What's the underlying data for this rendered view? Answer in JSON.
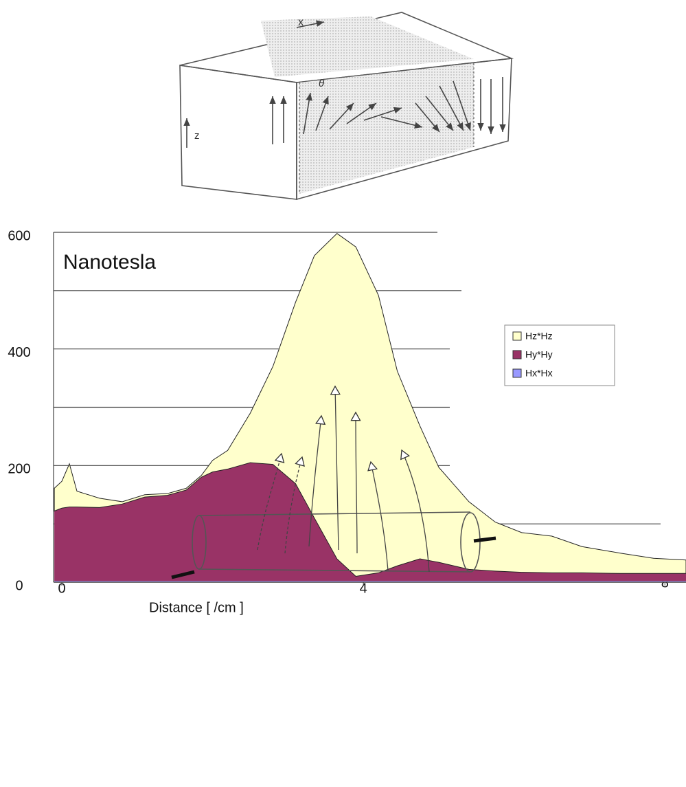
{
  "diagram_top": {
    "labels": [
      "x",
      "θ",
      "z"
    ]
  },
  "chart_data": {
    "type": "stacked-area",
    "annotation": "Nanotesla",
    "x_label": "Distance  [ /cm ]",
    "x": [
      -0.1,
      0,
      0.1,
      0.2,
      0.5,
      0.8,
      1.1,
      1.4,
      1.65,
      1.85,
      2.0,
      2.2,
      2.5,
      2.8,
      3.1,
      3.35,
      3.65,
      3.9,
      4.2,
      4.45,
      4.75,
      5.0,
      5.4,
      5.75,
      6.1,
      6.5,
      6.9,
      7.4,
      7.85,
      8.28
    ],
    "series": [
      {
        "name": "Hx*Hx",
        "color": "#9999ff",
        "values": [
          2,
          2,
          2,
          2,
          2,
          2,
          2,
          2,
          2,
          2,
          2,
          2,
          2,
          2,
          2,
          2,
          2,
          2,
          2,
          2,
          2,
          2,
          2,
          2,
          2,
          2,
          2,
          2,
          2,
          2
        ]
      },
      {
        "name": "Hy*Hy",
        "color": "#993366",
        "values": [
          120,
          125,
          127,
          127,
          126,
          132,
          144,
          147,
          156,
          178,
          187,
          192,
          203,
          200,
          167,
          108,
          38,
          8,
          14,
          26,
          38,
          32,
          20,
          17,
          15,
          14,
          14,
          13,
          13,
          13
        ]
      },
      {
        "name": "Hz*Hz",
        "color": "#ffffcc",
        "values": [
          39,
          46,
          74,
          27,
          16,
          4,
          4,
          3,
          3,
          3,
          20,
          32,
          85,
          168,
          311,
          450,
          558,
          565,
          476,
          334,
          228,
          163,
          116,
          84,
          68,
          63,
          45,
          35,
          26,
          23
        ]
      }
    ],
    "xlim": [
      -0.11,
      8.28
    ],
    "xticks": [
      0,
      4,
      8
    ],
    "ylim": [
      0,
      600
    ],
    "yticks": [
      0,
      200,
      400,
      600
    ],
    "ygrid": [
      100,
      200,
      300,
      400,
      500,
      600
    ],
    "legend": "right"
  }
}
